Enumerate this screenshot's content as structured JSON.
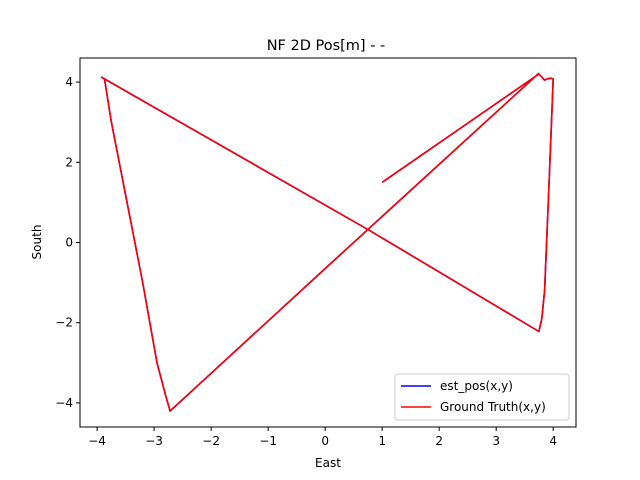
{
  "chart_data": {
    "type": "line",
    "title": "NF 2D Pos[m] -  -",
    "xlabel": "East",
    "ylabel": "South",
    "xlim": [
      -4.3,
      4.4
    ],
    "ylim": [
      -4.6,
      4.6
    ],
    "xticks": [
      -4,
      -3,
      -2,
      -1,
      0,
      1,
      2,
      3,
      4
    ],
    "xtick_labels": [
      "−4",
      "−3",
      "−2",
      "−1",
      "0",
      "1",
      "2",
      "3",
      "4"
    ],
    "yticks": [
      -4,
      -2,
      0,
      2,
      4
    ],
    "ytick_labels": [
      "−4",
      "−2",
      "0",
      "2",
      "4"
    ],
    "grid": false,
    "legend_position": "lower-right",
    "series": [
      {
        "name": "est_pos(x,y)",
        "color": "#0000ff",
        "x": [
          1.0,
          3.75,
          3.85,
          3.9,
          3.95,
          4.0,
          3.92,
          3.85,
          3.8,
          3.75,
          0.78,
          -3.92,
          -3.87,
          -3.75,
          -3.2,
          -2.95,
          -2.8,
          -2.72,
          0.0,
          3.75
        ],
        "y": [
          1.5,
          4.2,
          4.05,
          4.08,
          4.1,
          4.08,
          1.2,
          -1.2,
          -1.9,
          -2.22,
          0.3,
          4.12,
          4.08,
          3.0,
          -1.0,
          -3.0,
          -3.8,
          -4.2,
          -0.65,
          4.22
        ]
      },
      {
        "name": "Ground Truth(x,y)",
        "color": "#ff0000",
        "x": [
          1.0,
          3.75,
          3.85,
          3.9,
          3.95,
          4.0,
          3.92,
          3.85,
          3.8,
          3.75,
          0.78,
          -3.92,
          -3.87,
          -3.75,
          -3.2,
          -2.95,
          -2.8,
          -2.72,
          0.0,
          3.75
        ],
        "y": [
          1.5,
          4.2,
          4.05,
          4.08,
          4.1,
          4.08,
          1.2,
          -1.2,
          -1.9,
          -2.22,
          0.3,
          4.12,
          4.08,
          3.0,
          -1.0,
          -3.0,
          -3.8,
          -4.2,
          -0.65,
          4.22
        ]
      }
    ]
  }
}
